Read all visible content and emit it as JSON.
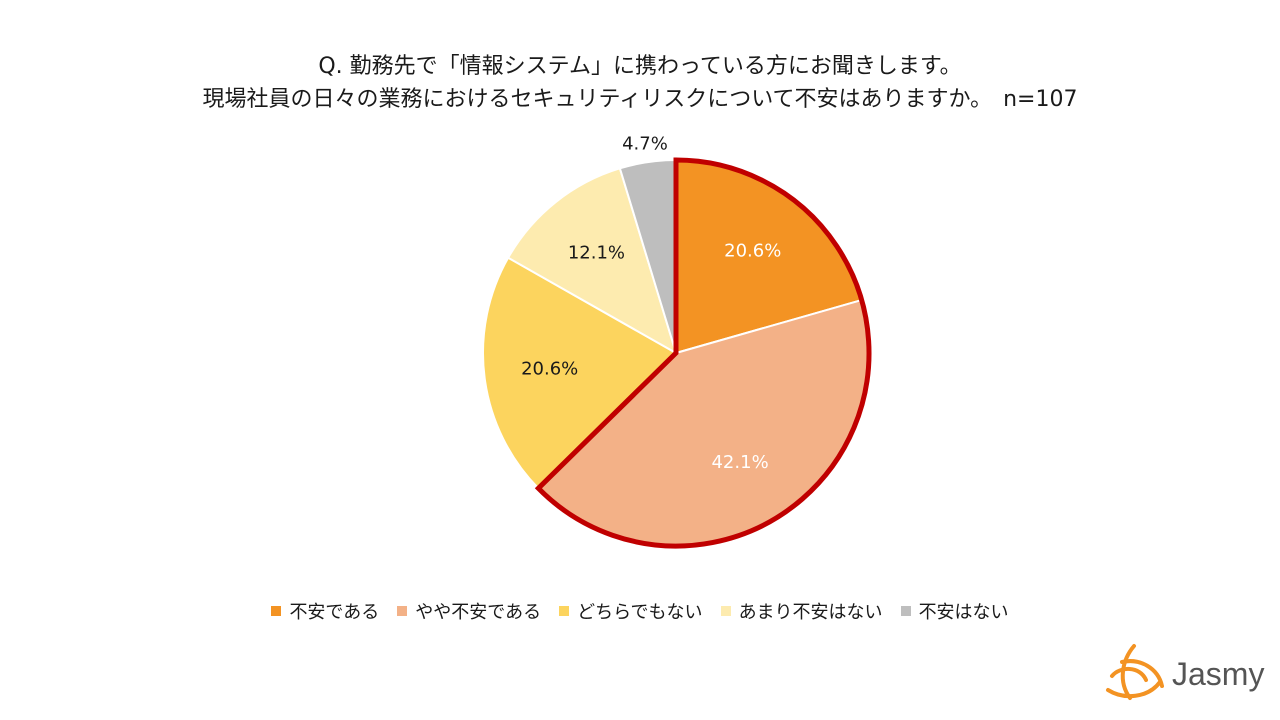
{
  "title": {
    "line1": "Q. 勤務先で「情報システム」に携わっている方にお聞きします。",
    "line2": "現場社員の日々の業務におけるセキュリティリスクについて不安はありますか。　n=107"
  },
  "chart_data": {
    "type": "pie",
    "start_angle_deg": 0,
    "direction": "clockwise",
    "slices": [
      {
        "label": "不安である",
        "value": 20.6,
        "display": "20.6%",
        "color": "#F39323",
        "label_color": "#ffffff",
        "emphasized": true
      },
      {
        "label": "やや不安である",
        "value": 42.1,
        "display": "42.1%",
        "color": "#F3B187",
        "label_color": "#ffffff",
        "emphasized": true
      },
      {
        "label": "どちらでもない",
        "value": 20.6,
        "display": "20.6%",
        "color": "#FCD45E",
        "label_color": "#1a1a1a",
        "emphasized": false
      },
      {
        "label": "あまり不安はない",
        "value": 12.1,
        "display": "12.1%",
        "color": "#FDEBAF",
        "label_color": "#1a1a1a",
        "emphasized": false
      },
      {
        "label": "不安はない",
        "value": 4.7,
        "display": "4.7%",
        "color": "#BEBEBE",
        "label_color": "#1a1a1a",
        "emphasized": false
      }
    ],
    "emphasis_color": "#C00000",
    "legend_position": "bottom"
  },
  "logo": {
    "name": "Jasmy",
    "color": "#F39323",
    "text_color": "#555555"
  }
}
